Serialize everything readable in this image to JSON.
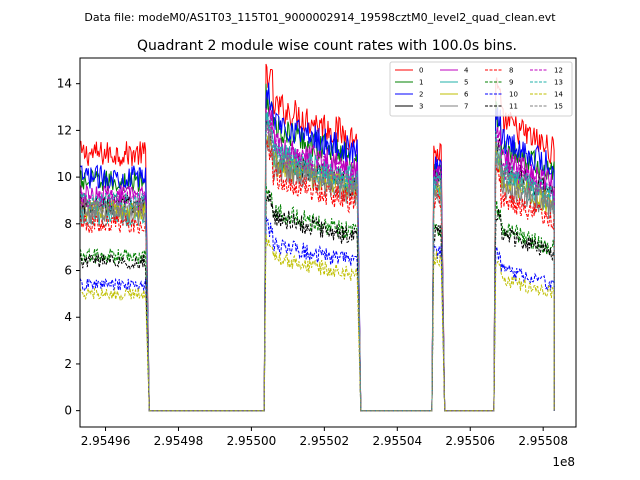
{
  "chart_data": {
    "type": "line",
    "suptitle": "Data file: modeM0/AS1T03_115T01_9000002914_19598cztM0_level2_quad_clean.evt",
    "title": "Quadrant 2 module wise count rates with 100.0s bins.",
    "xlabel": "",
    "ylabel": "",
    "x_offset_label": "1e8",
    "xlim": [
      2.954953,
      2.955089
    ],
    "ylim": [
      -0.7,
      15.1
    ],
    "x_ticks": [
      2.95496,
      2.95498,
      2.955,
      2.95502,
      2.95504,
      2.95506,
      2.95508
    ],
    "x_tick_labels": [
      "2.95496",
      "2.95498",
      "2.95500",
      "2.95502",
      "2.95504",
      "2.95506",
      "2.95508"
    ],
    "y_ticks": [
      0,
      2,
      4,
      6,
      8,
      10,
      12,
      14
    ],
    "y_tick_labels": [
      "0",
      "2",
      "4",
      "6",
      "8",
      "10",
      "12",
      "14"
    ],
    "segments": [
      {
        "start": 2.954953,
        "end": 2.954971,
        "ramp_to": 2.954972
      },
      {
        "start": 2.955004,
        "end": 2.955029,
        "ramp_to": 2.95503
      },
      {
        "start": 2.95505,
        "end": 2.955052,
        "ramp_to": 2.955053
      },
      {
        "start": 2.955067,
        "end": 2.955083,
        "ramp_to": 2.955083
      }
    ],
    "bin_width": 1e-06,
    "series": [
      {
        "name": "0",
        "color": "#ff0000",
        "dash": "solid",
        "levels": [
          11.0,
          13.2,
          11.0,
          12.6
        ]
      },
      {
        "name": "1",
        "color": "#008000",
        "dash": "solid",
        "levels": [
          9.8,
          12.2,
          10.2,
          11.5
        ]
      },
      {
        "name": "2",
        "color": "#0000ff",
        "dash": "solid",
        "levels": [
          10.0,
          12.5,
          10.5,
          11.8
        ]
      },
      {
        "name": "3",
        "color": "#000000",
        "dash": "solid",
        "levels": [
          8.8,
          10.9,
          9.8,
          10.5
        ]
      },
      {
        "name": "4",
        "color": "#bf00bf",
        "dash": "solid",
        "levels": [
          9.2,
          11.6,
          10.0,
          11.0
        ]
      },
      {
        "name": "5",
        "color": "#20b2aa",
        "dash": "solid",
        "levels": [
          8.3,
          11.2,
          9.6,
          10.2
        ]
      },
      {
        "name": "6",
        "color": "#bfbf00",
        "dash": "solid",
        "levels": [
          8.6,
          10.7,
          9.4,
          10.0
        ]
      },
      {
        "name": "7",
        "color": "#808080",
        "dash": "solid",
        "levels": [
          8.4,
          10.5,
          9.2,
          9.7
        ]
      },
      {
        "name": "8",
        "color": "#ff0000",
        "dash": "dashed",
        "levels": [
          8.0,
          10.1,
          9.0,
          9.2
        ]
      },
      {
        "name": "9",
        "color": "#008000",
        "dash": "dashed",
        "levels": [
          6.6,
          8.6,
          7.8,
          7.9
        ]
      },
      {
        "name": "10",
        "color": "#0000ff",
        "dash": "dashed",
        "levels": [
          5.4,
          7.2,
          6.8,
          6.1
        ]
      },
      {
        "name": "11",
        "color": "#000000",
        "dash": "dashed",
        "levels": [
          6.4,
          8.4,
          7.6,
          7.7
        ]
      },
      {
        "name": "12",
        "color": "#bf00bf",
        "dash": "dashed",
        "levels": [
          9.0,
          11.3,
          10.0,
          10.6
        ]
      },
      {
        "name": "13",
        "color": "#20b2aa",
        "dash": "dashed",
        "levels": [
          8.9,
          11.0,
          9.8,
          10.4
        ]
      },
      {
        "name": "14",
        "color": "#bfbf00",
        "dash": "dashed",
        "levels": [
          5.0,
          6.6,
          6.5,
          5.7
        ]
      },
      {
        "name": "15",
        "color": "#808080",
        "dash": "dashed",
        "levels": [
          8.7,
          10.8,
          9.5,
          10.1
        ]
      }
    ],
    "legend_position": "top-right",
    "legend_columns": 4
  }
}
